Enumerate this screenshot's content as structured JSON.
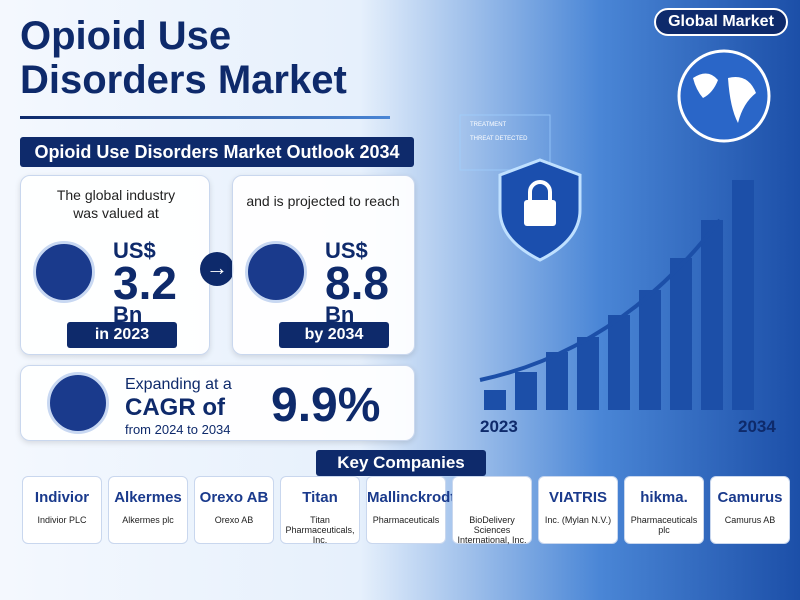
{
  "header": {
    "title_lines": [
      "Opioid Use",
      "Disorders Market"
    ],
    "badge": "Global Market",
    "outlook": "Opioid Use Disorders Market Outlook 2034"
  },
  "background_labels": [
    "TREATMENT",
    "THREAT DETECTED"
  ],
  "valued": {
    "intro": "The global industry was valued at",
    "currency": "US$",
    "value": "3.2",
    "unit": "Bn",
    "period": "in 2023"
  },
  "projected": {
    "intro": "and is projected to reach",
    "currency": "US$",
    "value": "8.8",
    "unit": "Bn",
    "period": "by 2034"
  },
  "cagr": {
    "line1": "Expanding at a",
    "line2": "CAGR of",
    "line3": "from 2024 to 2034",
    "value": "9.9%"
  },
  "growth_labels": {
    "start": "2023",
    "end": "2034"
  },
  "key_companies": {
    "heading": "Key Companies",
    "companies": [
      {
        "logo": "Indivior",
        "name": "Indivior PLC"
      },
      {
        "logo": "Alkermes",
        "name": "Alkermes plc"
      },
      {
        "logo": "Orexo AB",
        "name": "Orexo AB"
      },
      {
        "logo": "Titan",
        "name": "Titan Pharmaceuticals, Inc."
      },
      {
        "logo": "Mallinckrodt",
        "name": "Pharmaceuticals"
      },
      {
        "logo": "",
        "name": "BioDelivery Sciences International, Inc."
      },
      {
        "logo": "VIATRIS",
        "name": "Inc. (Mylan N.V.)"
      },
      {
        "logo": "hikma.",
        "name": "Pharmaceuticals plc"
      },
      {
        "logo": "Camurus",
        "name": "Camurus AB"
      }
    ]
  }
}
